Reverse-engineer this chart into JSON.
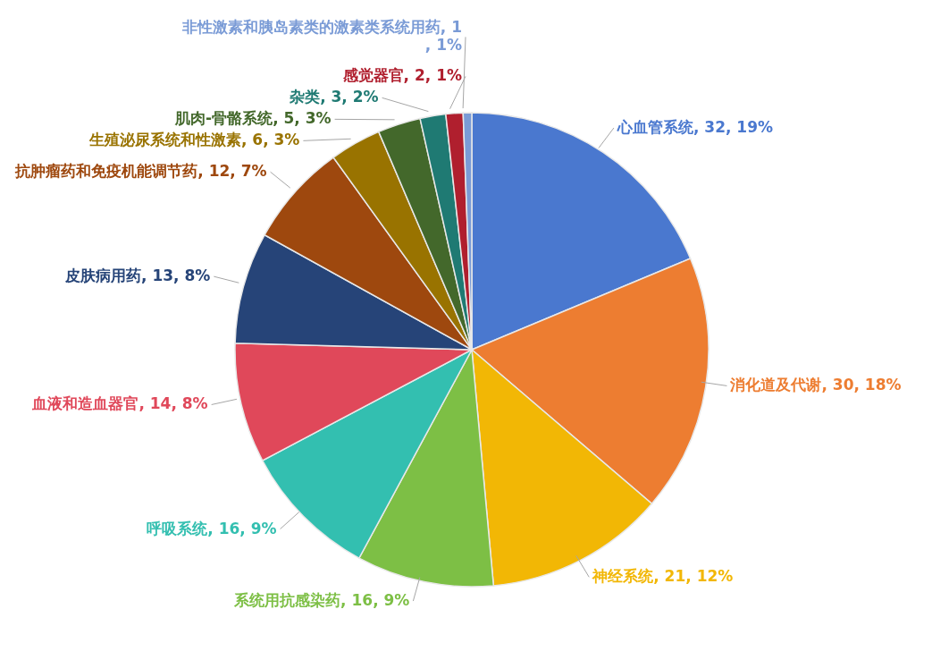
{
  "chart_data": {
    "type": "pie",
    "categories": [
      "心血管系统",
      "消化道及代谢",
      "神经系统",
      "系统用抗感染药",
      "呼吸系统",
      "血液和造血器官",
      "皮肤病用药",
      "抗肿瘤药和免疫机能调节药",
      "生殖泌尿系统和性激素",
      "肌肉-骨骼系统",
      "杂类",
      "感觉器官",
      "非性激素和胰岛素类的激素类系统用药"
    ],
    "values": [
      32,
      30,
      21,
      16,
      16,
      14,
      13,
      12,
      6,
      5,
      3,
      2,
      1
    ],
    "value_labels": [
      "32, 19%",
      "30, 18%",
      "21, 12%",
      "16, 9%",
      "16, 9%",
      "14, 8%",
      "13, 8%",
      "12, 7%",
      "6, 3%",
      "5, 3%",
      "3, 2%",
      "2, 1%",
      "1, 1%"
    ],
    "colors": [
      "#4a78cf",
      "#ed7d31",
      "#f2b705",
      "#7dbf45",
      "#33bfb0",
      "#e0485a",
      "#264478",
      "#9e480e",
      "#997300",
      "#43682b",
      "#1f7a73",
      "#b01f2e",
      "#7a9bd6"
    ]
  }
}
